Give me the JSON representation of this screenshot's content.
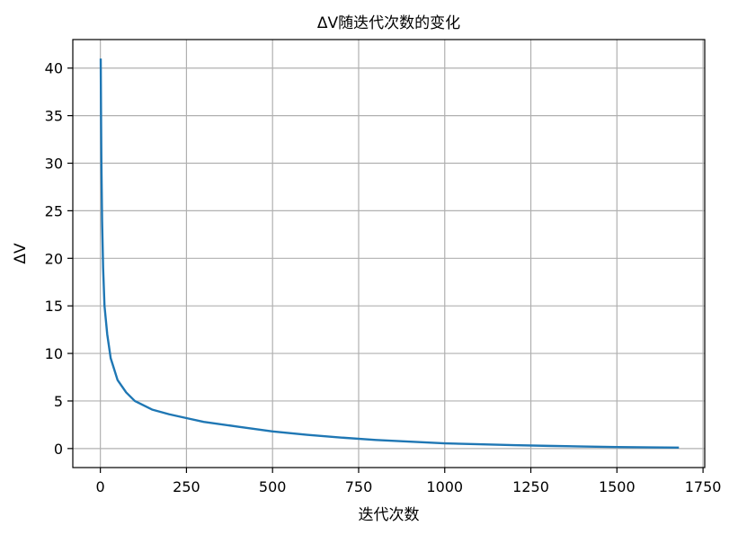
{
  "chart_data": {
    "type": "line",
    "title": "ΔV随迭代次数的变化",
    "xlabel": "迭代次数",
    "ylabel": "ΔV",
    "xlim": [
      -80,
      1755
    ],
    "ylim": [
      -2,
      43
    ],
    "xticks": [
      0,
      250,
      500,
      750,
      1000,
      1250,
      1500,
      1750
    ],
    "yticks": [
      0,
      5,
      10,
      15,
      20,
      25,
      30,
      35,
      40
    ],
    "grid": true,
    "line_color": "#1f77b4",
    "series": [
      {
        "x": [
          1,
          2,
          3,
          5,
          8,
          12,
          20,
          30,
          50,
          75,
          100,
          150,
          200,
          250,
          300,
          400,
          500,
          600,
          700,
          800,
          900,
          1000,
          1100,
          1200,
          1300,
          1400,
          1500,
          1600,
          1680
        ],
        "values": [
          41,
          35,
          30,
          24,
          19,
          15,
          12,
          9.5,
          7.2,
          5.9,
          5.0,
          4.1,
          3.6,
          3.2,
          2.8,
          2.3,
          1.8,
          1.45,
          1.15,
          0.9,
          0.72,
          0.55,
          0.45,
          0.36,
          0.28,
          0.22,
          0.16,
          0.12,
          0.1
        ]
      }
    ]
  }
}
